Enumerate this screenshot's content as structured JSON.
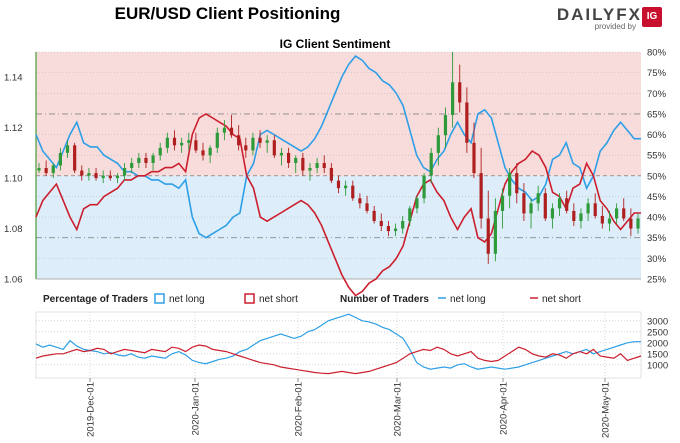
{
  "header": {
    "title": "EUR/USD Client Positioning",
    "subtitle": "IG Client Sentiment",
    "logo_text": "DAILYFX",
    "logo_provided": "provided by",
    "logo_badge": "IG"
  },
  "legend": {
    "pct_title": "Percentage of Traders",
    "pct_long": "net long",
    "pct_short": "net short",
    "num_title": "Number of Traders",
    "num_long": "net long",
    "num_short": "net short"
  },
  "colors": {
    "long": "#2e9fe6",
    "short": "#cc1f2e",
    "long_fill": "#ddeefa",
    "short_fill": "#f8dcdc",
    "up_candle": "#2e9a3a",
    "down_candle": "#b01f1f"
  },
  "chart_data": [
    {
      "type": "line",
      "title": "IG Client Sentiment",
      "y_left_ticks": [
        "1.06",
        "1.08",
        "1.10",
        "1.12",
        "1.14"
      ],
      "y_left_range": [
        1.06,
        1.15
      ],
      "y_right_ticks": [
        "25%",
        "30%",
        "35%",
        "40%",
        "45%",
        "50%",
        "55%",
        "60%",
        "65%",
        "70%",
        "75%",
        "80%"
      ],
      "y_right_range": [
        25,
        80
      ],
      "price_ohlc": [
        [
          1.103,
          1.106,
          1.102,
          1.104
        ],
        [
          1.104,
          1.107,
          1.101,
          1.102
        ],
        [
          1.102,
          1.106,
          1.1,
          1.105
        ],
        [
          1.105,
          1.112,
          1.103,
          1.11
        ],
        [
          1.11,
          1.115,
          1.108,
          1.113
        ],
        [
          1.113,
          1.114,
          1.102,
          1.103
        ],
        [
          1.103,
          1.105,
          1.099,
          1.101
        ],
        [
          1.101,
          1.104,
          1.099,
          1.102
        ],
        [
          1.102,
          1.104,
          1.099,
          1.1
        ],
        [
          1.1,
          1.103,
          1.098,
          1.101
        ],
        [
          1.101,
          1.103,
          1.099,
          1.1
        ],
        [
          1.1,
          1.102,
          1.098,
          1.101
        ],
        [
          1.101,
          1.106,
          1.099,
          1.104
        ],
        [
          1.104,
          1.108,
          1.102,
          1.106
        ],
        [
          1.106,
          1.11,
          1.104,
          1.108
        ],
        [
          1.108,
          1.11,
          1.104,
          1.106
        ],
        [
          1.106,
          1.11,
          1.103,
          1.109
        ],
        [
          1.109,
          1.114,
          1.107,
          1.112
        ],
        [
          1.112,
          1.118,
          1.11,
          1.116
        ],
        [
          1.116,
          1.119,
          1.111,
          1.113
        ],
        [
          1.113,
          1.116,
          1.11,
          1.114
        ],
        [
          1.114,
          1.118,
          1.111,
          1.115
        ],
        [
          1.115,
          1.118,
          1.11,
          1.111
        ],
        [
          1.111,
          1.114,
          1.107,
          1.109
        ],
        [
          1.109,
          1.113,
          1.106,
          1.112
        ],
        [
          1.112,
          1.12,
          1.11,
          1.118
        ],
        [
          1.118,
          1.123,
          1.115,
          1.12
        ],
        [
          1.12,
          1.125,
          1.116,
          1.117
        ],
        [
          1.117,
          1.121,
          1.111,
          1.113
        ],
        [
          1.113,
          1.116,
          1.108,
          1.111
        ],
        [
          1.111,
          1.118,
          1.109,
          1.116
        ],
        [
          1.116,
          1.119,
          1.112,
          1.114
        ],
        [
          1.114,
          1.117,
          1.11,
          1.115
        ],
        [
          1.115,
          1.117,
          1.108,
          1.109
        ],
        [
          1.109,
          1.112,
          1.105,
          1.11
        ],
        [
          1.11,
          1.112,
          1.104,
          1.106
        ],
        [
          1.106,
          1.109,
          1.102,
          1.108
        ],
        [
          1.108,
          1.11,
          1.101,
          1.103
        ],
        [
          1.103,
          1.106,
          1.099,
          1.104
        ],
        [
          1.104,
          1.108,
          1.102,
          1.106
        ],
        [
          1.106,
          1.109,
          1.102,
          1.104
        ],
        [
          1.104,
          1.106,
          1.098,
          1.099
        ],
        [
          1.099,
          1.101,
          1.094,
          1.096
        ],
        [
          1.096,
          1.099,
          1.093,
          1.097
        ],
        [
          1.097,
          1.099,
          1.091,
          1.092
        ],
        [
          1.092,
          1.094,
          1.088,
          1.09
        ],
        [
          1.09,
          1.093,
          1.086,
          1.087
        ],
        [
          1.087,
          1.089,
          1.082,
          1.083
        ],
        [
          1.083,
          1.086,
          1.079,
          1.081
        ],
        [
          1.081,
          1.083,
          1.077,
          1.079
        ],
        [
          1.079,
          1.082,
          1.077,
          1.08
        ],
        [
          1.08,
          1.085,
          1.078,
          1.083
        ],
        [
          1.083,
          1.089,
          1.081,
          1.088
        ],
        [
          1.088,
          1.093,
          1.086,
          1.092
        ],
        [
          1.092,
          1.102,
          1.09,
          1.101
        ],
        [
          1.101,
          1.112,
          1.098,
          1.11
        ],
        [
          1.11,
          1.12,
          1.105,
          1.117
        ],
        [
          1.117,
          1.128,
          1.112,
          1.125
        ],
        [
          1.125,
          1.15,
          1.12,
          1.138
        ],
        [
          1.138,
          1.145,
          1.126,
          1.13
        ],
        [
          1.13,
          1.136,
          1.11,
          1.114
        ],
        [
          1.114,
          1.122,
          1.1,
          1.102
        ],
        [
          1.102,
          1.112,
          1.08,
          1.084
        ],
        [
          1.084,
          1.095,
          1.066,
          1.07
        ],
        [
          1.07,
          1.092,
          1.067,
          1.087
        ],
        [
          1.087,
          1.096,
          1.08,
          1.093
        ],
        [
          1.093,
          1.104,
          1.088,
          1.102
        ],
        [
          1.102,
          1.106,
          1.09,
          1.094
        ],
        [
          1.094,
          1.098,
          1.083,
          1.086
        ],
        [
          1.086,
          1.092,
          1.08,
          1.09
        ],
        [
          1.09,
          1.097,
          1.087,
          1.094
        ],
        [
          1.094,
          1.096,
          1.083,
          1.084
        ],
        [
          1.084,
          1.09,
          1.08,
          1.088
        ],
        [
          1.088,
          1.094,
          1.085,
          1.092
        ],
        [
          1.092,
          1.095,
          1.086,
          1.087
        ],
        [
          1.087,
          1.09,
          1.081,
          1.083
        ],
        [
          1.083,
          1.088,
          1.08,
          1.086
        ],
        [
          1.086,
          1.092,
          1.083,
          1.09
        ],
        [
          1.09,
          1.094,
          1.084,
          1.085
        ],
        [
          1.085,
          1.089,
          1.08,
          1.082
        ],
        [
          1.082,
          1.087,
          1.079,
          1.084
        ],
        [
          1.084,
          1.09,
          1.082,
          1.088
        ],
        [
          1.088,
          1.092,
          1.083,
          1.084
        ],
        [
          1.084,
          1.088,
          1.077,
          1.08
        ],
        [
          1.08,
          1.086,
          1.078,
          1.084
        ]
      ],
      "series": [
        {
          "name": "net long",
          "values": [
            60,
            56,
            54,
            52,
            56,
            60,
            63,
            58,
            57,
            57,
            55,
            54,
            53,
            51,
            51,
            50,
            50,
            49,
            49,
            48,
            48,
            47,
            49,
            40,
            36,
            35,
            36,
            37,
            38,
            40,
            41,
            50,
            53,
            60,
            61,
            60,
            59,
            58,
            57,
            56,
            57,
            59,
            62,
            66,
            70,
            74,
            77,
            79,
            78,
            76,
            75,
            73,
            72,
            70,
            67,
            61,
            55,
            52,
            51,
            54,
            56,
            60,
            63,
            60,
            58,
            65,
            66,
            64,
            58,
            52,
            49,
            47,
            46,
            44,
            45,
            48,
            54,
            55,
            58,
            53,
            52,
            47,
            50,
            56,
            58,
            61,
            63,
            61,
            59,
            59
          ]
        },
        {
          "name": "net short",
          "values": [
            40,
            44,
            46,
            48,
            44,
            40,
            37,
            42,
            43,
            43,
            45,
            46,
            47,
            49,
            49,
            50,
            50,
            51,
            51,
            52,
            52,
            53,
            51,
            60,
            64,
            65,
            64,
            63,
            62,
            60,
            59,
            50,
            47,
            40,
            39,
            40,
            41,
            42,
            43,
            44,
            43,
            41,
            38,
            34,
            30,
            26,
            23,
            21,
            22,
            24,
            25,
            27,
            28,
            30,
            33,
            39,
            45,
            48,
            49,
            46,
            44,
            40,
            37,
            40,
            42,
            35,
            34,
            36,
            42,
            48,
            51,
            53,
            54,
            56,
            55,
            52,
            46,
            45,
            42,
            47,
            48,
            53,
            50,
            44,
            42,
            39,
            37,
            39,
            41,
            41
          ]
        }
      ]
    },
    {
      "type": "line",
      "title": "Number of Traders",
      "y_ticks": [
        "1000",
        "1500",
        "2000",
        "2500",
        "3000"
      ],
      "y_range": [
        400,
        3400
      ],
      "x_ticks": [
        "2019-Dec-01",
        "2020-Jan-01",
        "2020-Feb-01",
        "2020-Mar-01",
        "2020-Apr-01",
        "2020-May-01"
      ],
      "series": [
        {
          "name": "net long",
          "values": [
            1950,
            1800,
            1900,
            1800,
            1700,
            2100,
            1850,
            1700,
            1650,
            1600,
            1500,
            1550,
            1450,
            1400,
            1500,
            1350,
            1300,
            1400,
            1350,
            1300,
            1500,
            1600,
            1450,
            1200,
            1100,
            1050,
            1150,
            1250,
            1300,
            1400,
            1600,
            1700,
            1900,
            2100,
            2200,
            2300,
            2400,
            2300,
            2200,
            2300,
            2500,
            2600,
            2800,
            3000,
            3100,
            3200,
            3300,
            3150,
            3000,
            2950,
            2850,
            2700,
            2600,
            2400,
            2200,
            1700,
            1100,
            900,
            800,
            850,
            900,
            850,
            1000,
            1050,
            900,
            800,
            850,
            900,
            850,
            800,
            850,
            900,
            1000,
            1100,
            1200,
            1300,
            1400,
            1500,
            1600,
            1500,
            1600,
            1700,
            1500,
            1600,
            1700,
            1800,
            1900,
            2000,
            2050,
            2050
          ]
        },
        {
          "name": "net short",
          "values": [
            1300,
            1400,
            1450,
            1500,
            1500,
            1600,
            1700,
            1600,
            1650,
            1750,
            1700,
            1500,
            1600,
            1700,
            1650,
            1600,
            1550,
            1700,
            1650,
            1600,
            1800,
            1750,
            1600,
            1800,
            1900,
            1850,
            1700,
            1650,
            1600,
            1500,
            1400,
            1300,
            1200,
            1100,
            1050,
            1000,
            900,
            850,
            800,
            750,
            700,
            650,
            620,
            600,
            650,
            700,
            650,
            600,
            650,
            700,
            800,
            900,
            1000,
            1100,
            1300,
            1500,
            1600,
            1700,
            1650,
            1800,
            1700,
            1500,
            1400,
            1500,
            1600,
            1300,
            1200,
            1150,
            1200,
            1400,
            1600,
            1800,
            1700,
            1500,
            1400,
            1350,
            1500,
            1450,
            1300,
            1500,
            1600,
            1500,
            1700,
            1400,
            1350,
            1300,
            1500,
            1200,
            1300,
            1400
          ]
        }
      ]
    }
  ]
}
